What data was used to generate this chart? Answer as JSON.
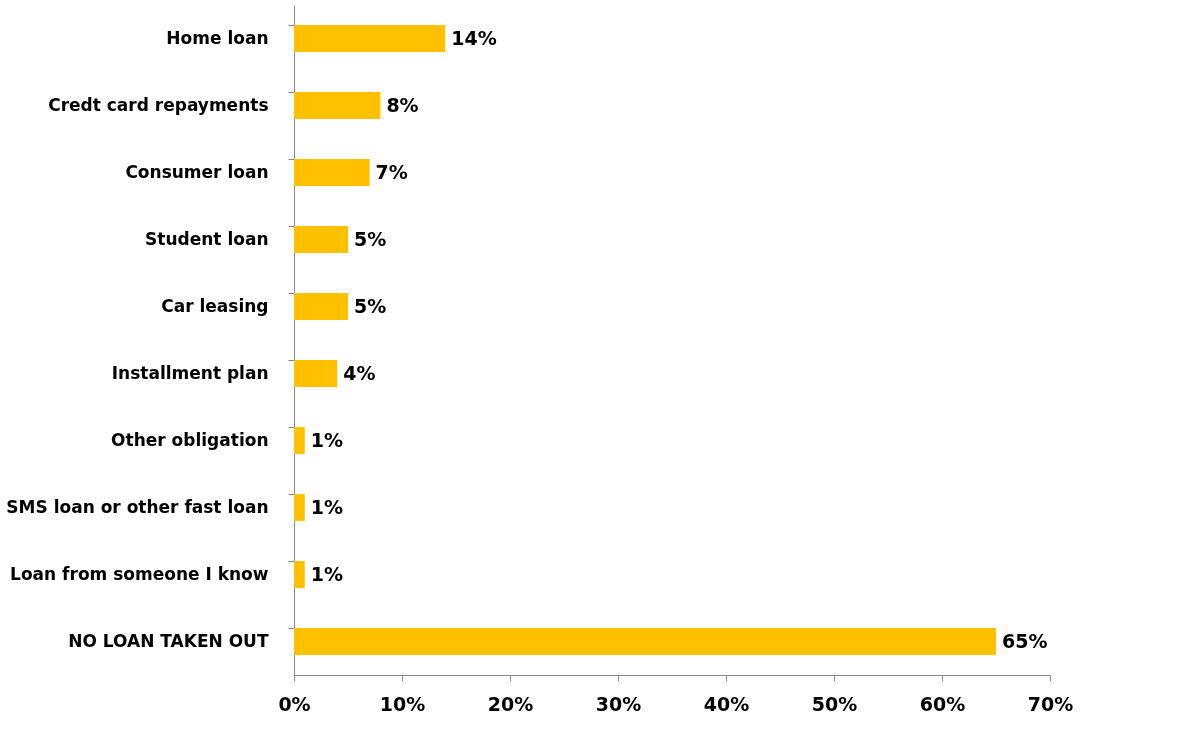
{
  "chart_data": {
    "type": "bar",
    "orientation": "horizontal",
    "categories": [
      "Home loan",
      "Credt card repayments",
      "Consumer loan",
      "Student loan",
      "Car leasing",
      "Installment plan",
      "Other obligation",
      "SMS loan or other fast loan",
      "Loan from someone I know",
      "NO LOAN TAKEN OUT"
    ],
    "values": [
      14,
      8,
      7,
      5,
      5,
      4,
      1,
      1,
      1,
      65
    ],
    "value_labels": [
      "14%",
      "8%",
      "7%",
      "5%",
      "5%",
      "4%",
      "1%",
      "1%",
      "1%",
      "65%"
    ],
    "color": "#ffc000",
    "xlim": [
      0,
      70
    ],
    "xticks": [
      {
        "value": 0,
        "label": "0%"
      },
      {
        "value": 10,
        "label": "10%"
      },
      {
        "value": 20,
        "label": "20%"
      },
      {
        "value": 30,
        "label": "30%"
      },
      {
        "value": 40,
        "label": "40%"
      },
      {
        "value": 50,
        "label": "50%"
      },
      {
        "value": 60,
        "label": "60%"
      },
      {
        "value": 70,
        "label": "70%"
      }
    ],
    "grid": false
  }
}
